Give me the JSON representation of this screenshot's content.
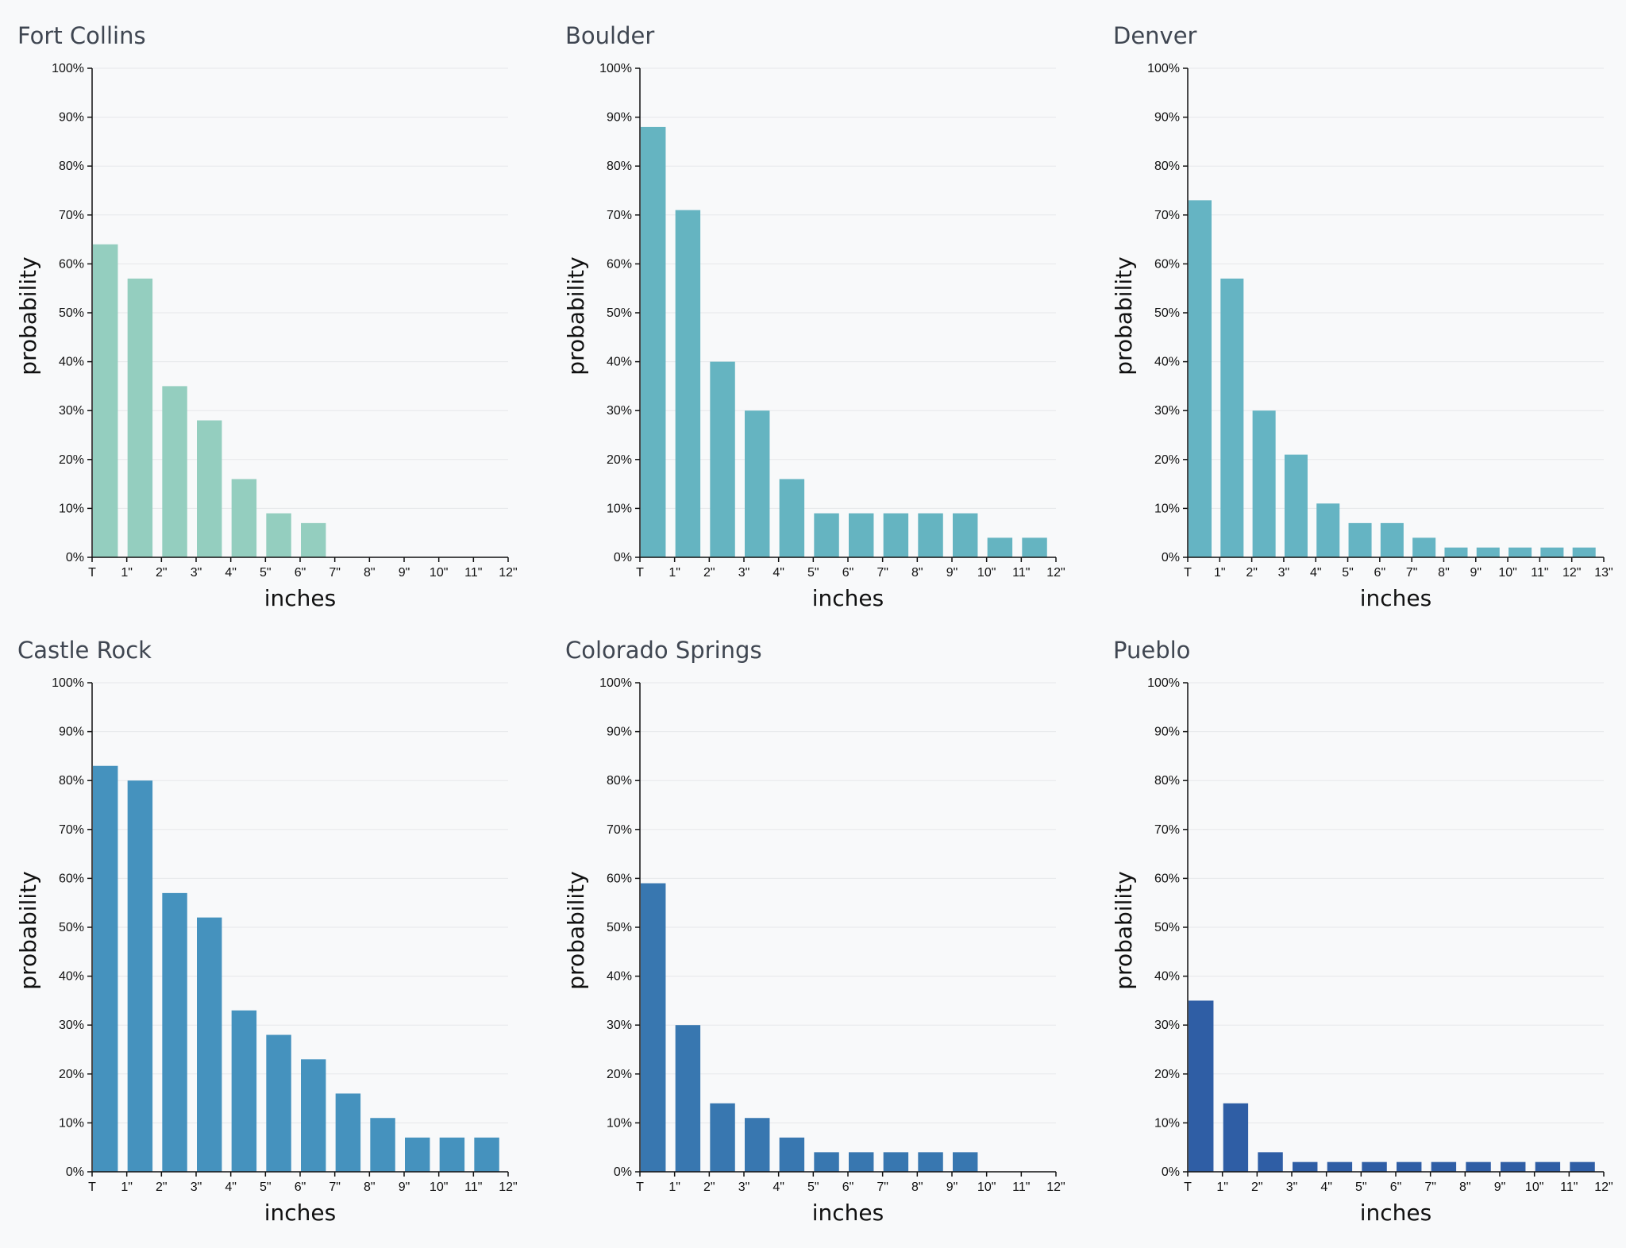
{
  "chart_data": [
    {
      "type": "bar",
      "title": "Fort Collins",
      "xlabel": "inches",
      "ylabel": "probability",
      "color": "#94cebf",
      "ylim": [
        0,
        100
      ],
      "y_ticks": [
        "0%",
        "10%",
        "20%",
        "30%",
        "40%",
        "50%",
        "60%",
        "70%",
        "80%",
        "90%",
        "100%"
      ],
      "x_ticks": [
        "T",
        "1\"",
        "2\"",
        "3\"",
        "4\"",
        "5\"",
        "6\"",
        "7\"",
        "8\"",
        "9\"",
        "10\"",
        "11\"",
        "12\""
      ],
      "values": [
        64,
        57,
        35,
        28,
        16,
        9,
        7
      ]
    },
    {
      "type": "bar",
      "title": "Boulder",
      "xlabel": "inches",
      "ylabel": "probability",
      "color": "#65b4c1",
      "ylim": [
        0,
        100
      ],
      "y_ticks": [
        "0%",
        "10%",
        "20%",
        "30%",
        "40%",
        "50%",
        "60%",
        "70%",
        "80%",
        "90%",
        "100%"
      ],
      "x_ticks": [
        "T",
        "1\"",
        "2\"",
        "3\"",
        "4\"",
        "5\"",
        "6\"",
        "7\"",
        "8\"",
        "9\"",
        "10\"",
        "11\"",
        "12\""
      ],
      "values": [
        88,
        71,
        40,
        30,
        16,
        9,
        9,
        9,
        9,
        9,
        4,
        4
      ]
    },
    {
      "type": "bar",
      "title": "Denver",
      "xlabel": "inches",
      "ylabel": "probability",
      "color": "#65b4c3",
      "ylim": [
        0,
        100
      ],
      "y_ticks": [
        "0%",
        "10%",
        "20%",
        "30%",
        "40%",
        "50%",
        "60%",
        "70%",
        "80%",
        "90%",
        "100%"
      ],
      "x_ticks": [
        "T",
        "1\"",
        "2\"",
        "3\"",
        "4\"",
        "5\"",
        "6\"",
        "7\"",
        "8\"",
        "9\"",
        "10\"",
        "11\"",
        "12\"",
        "13\""
      ],
      "values": [
        73,
        57,
        30,
        21,
        11,
        7,
        7,
        4,
        2,
        2,
        2,
        2,
        2
      ]
    },
    {
      "type": "bar",
      "title": "Castle Rock",
      "xlabel": "inches",
      "ylabel": "probability",
      "color": "#4592be",
      "ylim": [
        0,
        100
      ],
      "y_ticks": [
        "0%",
        "10%",
        "20%",
        "30%",
        "40%",
        "50%",
        "60%",
        "70%",
        "80%",
        "90%",
        "100%"
      ],
      "x_ticks": [
        "T",
        "1\"",
        "2\"",
        "3\"",
        "4\"",
        "5\"",
        "6\"",
        "7\"",
        "8\"",
        "9\"",
        "10\"",
        "11\"",
        "12\""
      ],
      "values": [
        83,
        80,
        57,
        52,
        33,
        28,
        23,
        16,
        11,
        7,
        7,
        7
      ]
    },
    {
      "type": "bar",
      "title": "Colorado Springs",
      "xlabel": "inches",
      "ylabel": "probability",
      "color": "#3877b0",
      "ylim": [
        0,
        100
      ],
      "y_ticks": [
        "0%",
        "10%",
        "20%",
        "30%",
        "40%",
        "50%",
        "60%",
        "70%",
        "80%",
        "90%",
        "100%"
      ],
      "x_ticks": [
        "T",
        "1\"",
        "2\"",
        "3\"",
        "4\"",
        "5\"",
        "6\"",
        "7\"",
        "8\"",
        "9\"",
        "10\"",
        "11\"",
        "12\""
      ],
      "values": [
        59,
        30,
        14,
        11,
        7,
        4,
        4,
        4,
        4,
        4
      ]
    },
    {
      "type": "bar",
      "title": "Pueblo",
      "xlabel": "inches",
      "ylabel": "probability",
      "color": "#2f5ea5",
      "ylim": [
        0,
        100
      ],
      "y_ticks": [
        "0%",
        "10%",
        "20%",
        "30%",
        "40%",
        "50%",
        "60%",
        "70%",
        "80%",
        "90%",
        "100%"
      ],
      "x_ticks": [
        "T",
        "1\"",
        "2\"",
        "3\"",
        "4\"",
        "5\"",
        "6\"",
        "7\"",
        "8\"",
        "9\"",
        "10\"",
        "11\"",
        "12\""
      ],
      "values": [
        35,
        14,
        4,
        2,
        2,
        2,
        2,
        2,
        2,
        2,
        2,
        2
      ]
    }
  ]
}
